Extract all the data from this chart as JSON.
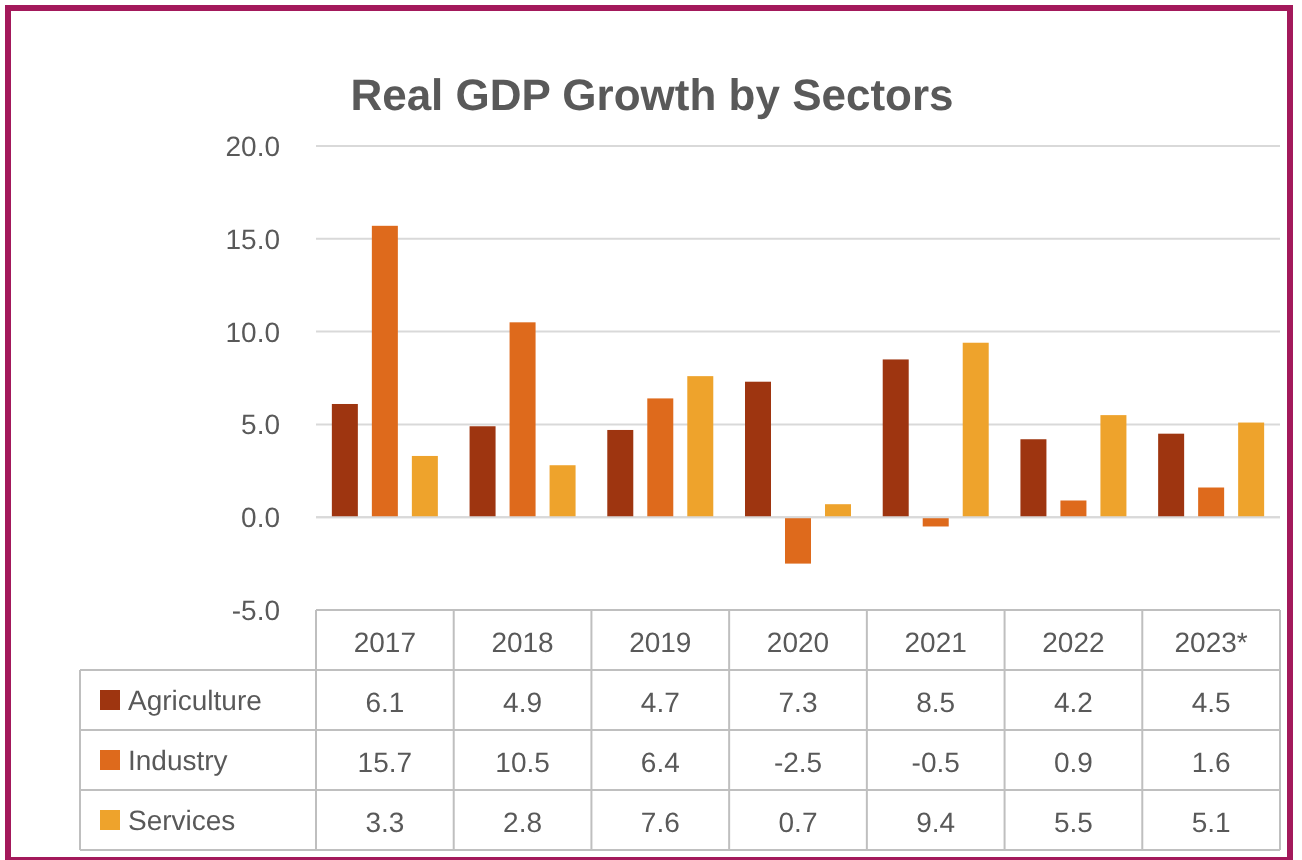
{
  "chart_data": {
    "type": "bar",
    "title": "Real GDP Growth by Sectors",
    "categories": [
      "2017",
      "2018",
      "2019",
      "2020",
      "2021",
      "2022",
      "2023*"
    ],
    "series": [
      {
        "name": "Agriculture",
        "color": "#9e3510",
        "values": [
          6.1,
          4.9,
          4.7,
          7.3,
          8.5,
          4.2,
          4.5
        ]
      },
      {
        "name": "Industry",
        "color": "#de6a1c",
        "values": [
          15.7,
          10.5,
          6.4,
          -2.5,
          -0.5,
          0.9,
          1.6
        ]
      },
      {
        "name": "Services",
        "color": "#eea32c",
        "values": [
          3.3,
          2.8,
          7.6,
          0.7,
          9.4,
          5.5,
          5.1
        ]
      }
    ],
    "ylim": [
      -5,
      20
    ],
    "yticks": [
      {
        "value": -5,
        "label": "-5.0"
      },
      {
        "value": 0,
        "label": "0.0"
      },
      {
        "value": 5,
        "label": "5.0"
      },
      {
        "value": 10,
        "label": "10.0"
      },
      {
        "value": 15,
        "label": "15.0"
      },
      {
        "value": 20,
        "label": "20.0"
      }
    ],
    "grid": "y",
    "legend": "bottom",
    "data_labels": true
  }
}
